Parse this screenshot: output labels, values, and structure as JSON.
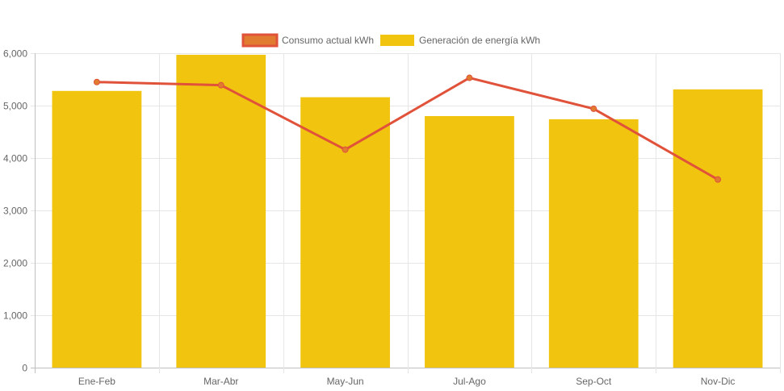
{
  "chart_data": {
    "type": "bar",
    "categories": [
      "Ene-Feb",
      "Mar-Abr",
      "May-Jun",
      "Jul-Ago",
      "Sep-Oct",
      "Nov-Dic"
    ],
    "series": [
      {
        "name": "Consumo actual kWh",
        "type": "line",
        "values": [
          5450,
          5390,
          4160,
          5530,
          4940,
          3590
        ],
        "color": "#e0523a",
        "point_color": "#e07b30"
      },
      {
        "name": "Generación de energía kWh",
        "type": "bar",
        "values": [
          5280,
          5970,
          5160,
          4800,
          4740,
          5310
        ],
        "color": "#f1c40f"
      }
    ],
    "y_ticks": [
      "0",
      "1,000",
      "2,000",
      "3,000",
      "4,000",
      "5,000",
      "6,000"
    ],
    "ylim": [
      0,
      6000
    ],
    "grid": true,
    "legend_position": "top"
  }
}
